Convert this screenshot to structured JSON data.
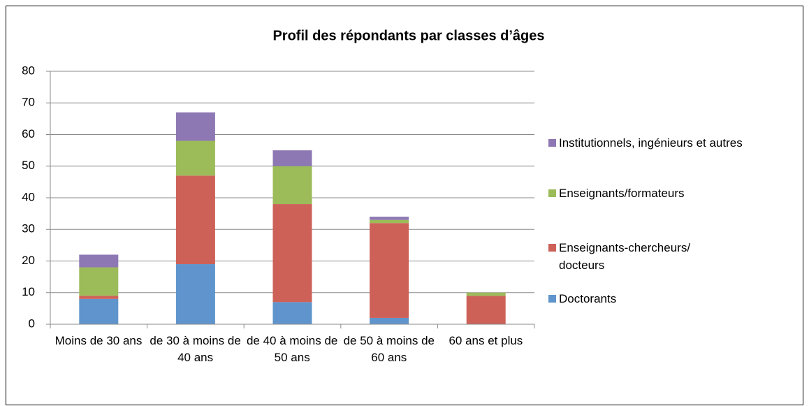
{
  "chart_data": {
    "type": "stacked_bar",
    "title": "Profil des répondants par classes d’âges",
    "categories": [
      "Moins de 30 ans",
      "de 30 à moins de 40 ans",
      "de 40 à moins de 50 ans",
      "de 50 à moins de 60 ans",
      "60 ans et plus"
    ],
    "series": [
      {
        "name": "Doctorants",
        "color": "#5f95cc",
        "values": [
          8,
          19,
          7,
          2,
          0
        ]
      },
      {
        "name": "Enseignants-chercheurs/ docteurs",
        "color": "#cd6158",
        "values": [
          1,
          28,
          31,
          30,
          9
        ]
      },
      {
        "name": "Enseignants/formateurs",
        "color": "#9cbb59",
        "values": [
          9,
          11,
          12,
          1,
          1
        ]
      },
      {
        "name": "Institutionnels, ingénieurs et autres",
        "color": "#8d78b4",
        "values": [
          4,
          9,
          5,
          1,
          0
        ]
      }
    ],
    "ylim": [
      0,
      80
    ],
    "yticks": [
      0,
      10,
      20,
      30,
      40,
      50,
      60,
      70,
      80
    ],
    "grid": true,
    "legend": "right"
  }
}
